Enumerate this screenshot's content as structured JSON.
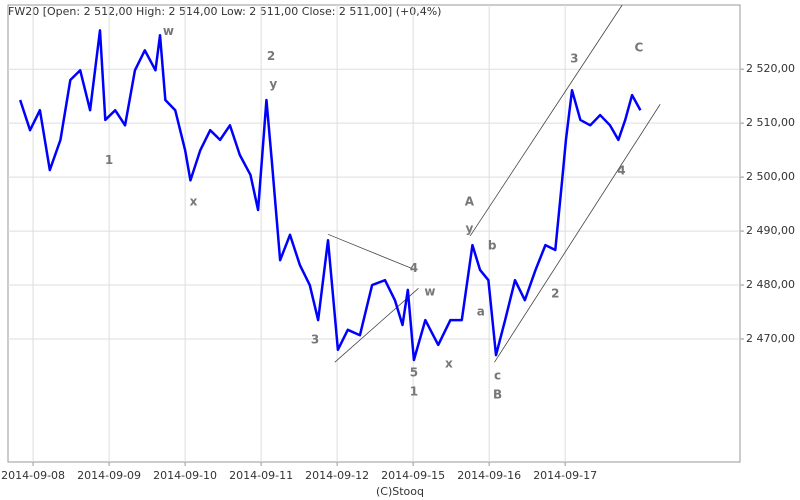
{
  "chart_data": {
    "type": "line",
    "title": "FW20 [Open: 2 512,00  High: 2 514,00  Low: 2 511,00  Close: 2 511,00] (+0,4%)",
    "footer": "(C)Stooq",
    "x": [
      -0.17,
      -0.04,
      0.09,
      0.22,
      0.36,
      0.49,
      0.62,
      0.75,
      0.88,
      0.95,
      1.08,
      1.21,
      1.34,
      1.47,
      1.61,
      1.67,
      1.74,
      1.87,
      2.0,
      2.07,
      2.2,
      2.33,
      2.46,
      2.59,
      2.72,
      2.86,
      2.96,
      3.07,
      3.14,
      3.25,
      3.38,
      3.51,
      3.64,
      3.75,
      3.88,
      4.01,
      4.14,
      4.3,
      4.46,
      4.63,
      4.76,
      4.86,
      4.93,
      5.01,
      5.16,
      5.33,
      5.49,
      5.64,
      5.78,
      5.88,
      5.99,
      6.09,
      6.21,
      6.34,
      6.47,
      6.61,
      6.74,
      6.87,
      6.96,
      7.01,
      7.09,
      7.2,
      7.33,
      7.46,
      7.59,
      7.7,
      7.79,
      7.88,
      7.99
    ],
    "series": [
      {
        "name": "FW20",
        "color": "#0000ff",
        "values": [
          2514.3,
          2508.7,
          2512.4,
          2501.3,
          2506.9,
          2518.0,
          2519.8,
          2512.4,
          2527.2,
          2510.6,
          2512.4,
          2509.6,
          2519.8,
          2523.5,
          2519.8,
          2526.3,
          2514.3,
          2512.4,
          2505.0,
          2499.4,
          2505.0,
          2508.7,
          2506.9,
          2509.6,
          2504.1,
          2500.4,
          2493.9,
          2514.3,
          2503.1,
          2484.6,
          2489.3,
          2483.7,
          2480.0,
          2473.5,
          2488.3,
          2468.0,
          2471.7,
          2470.7,
          2480.0,
          2480.9,
          2477.2,
          2472.6,
          2479.1,
          2466.1,
          2473.5,
          2468.9,
          2473.5,
          2473.5,
          2487.4,
          2482.8,
          2480.9,
          2467.0,
          2473.5,
          2480.9,
          2477.2,
          2482.8,
          2487.4,
          2486.5,
          2499.4,
          2506.9,
          2516.1,
          2510.6,
          2509.6,
          2511.5,
          2509.6,
          2506.9,
          2510.6,
          2515.2,
          2512.4
        ]
      }
    ],
    "xlim": [
      -0.33,
      9.3
    ],
    "ylim": [
      2447.2,
      2531.9
    ],
    "xticks": [
      {
        "value": 0,
        "label": "2014-09-08"
      },
      {
        "value": 1,
        "label": "2014-09-09"
      },
      {
        "value": 2,
        "label": "2014-09-10"
      },
      {
        "value": 3,
        "label": "2014-09-11"
      },
      {
        "value": 4,
        "label": "2014-09-12"
      },
      {
        "value": 5,
        "label": "2014-09-15"
      },
      {
        "value": 6,
        "label": "2014-09-16"
      },
      {
        "value": 7,
        "label": "2014-09-17"
      }
    ],
    "yticks": [
      {
        "value": 2470,
        "label": "2 470,00"
      },
      {
        "value": 2480,
        "label": "2 480,00"
      },
      {
        "value": 2490,
        "label": "2 490,00"
      },
      {
        "value": 2500,
        "label": "2 500,00"
      },
      {
        "value": 2510,
        "label": "2 510,00"
      },
      {
        "value": 2520,
        "label": "2 520,00"
      }
    ],
    "grid": true,
    "annotations": [
      {
        "text": "w",
        "x": 1.78,
        "y": 2527.0
      },
      {
        "text": "1",
        "x": 1.0,
        "y": 2503.1
      },
      {
        "text": "x",
        "x": 2.11,
        "y": 2495.4
      },
      {
        "text": "2",
        "x": 3.13,
        "y": 2522.4
      },
      {
        "text": "y",
        "x": 3.16,
        "y": 2517.2
      },
      {
        "text": "3",
        "x": 3.71,
        "y": 2469.8
      },
      {
        "text": "4",
        "x": 5.01,
        "y": 2483.1
      },
      {
        "text": "w",
        "x": 5.22,
        "y": 2478.7
      },
      {
        "text": "5",
        "x": 5.01,
        "y": 2463.7
      },
      {
        "text": "1",
        "x": 5.01,
        "y": 2460.2
      },
      {
        "text": "x",
        "x": 5.47,
        "y": 2465.4
      },
      {
        "text": "A",
        "x": 5.74,
        "y": 2495.4
      },
      {
        "text": "y",
        "x": 5.74,
        "y": 2490.4
      },
      {
        "text": "b",
        "x": 6.04,
        "y": 2487.2
      },
      {
        "text": "a",
        "x": 5.89,
        "y": 2475.0
      },
      {
        "text": "c",
        "x": 6.11,
        "y": 2463.1
      },
      {
        "text": "B",
        "x": 6.11,
        "y": 2459.6
      },
      {
        "text": "2",
        "x": 6.87,
        "y": 2478.3
      },
      {
        "text": "3",
        "x": 7.12,
        "y": 2521.9
      },
      {
        "text": "4",
        "x": 7.74,
        "y": 2501.1
      },
      {
        "text": "C",
        "x": 7.97,
        "y": 2523.9
      }
    ],
    "trend_lines": [
      {
        "x": [
          3.88,
          5.03
        ],
        "y": [
          2489.4,
          2482.8
        ]
      },
      {
        "x": [
          3.97,
          5.07
        ],
        "y": [
          2465.7,
          2479.4
        ]
      },
      {
        "x": [
          5.75,
          7.75
        ],
        "y": [
          2489.1,
          2531.9
        ]
      },
      {
        "x": [
          6.07,
          8.25
        ],
        "y": [
          2465.7,
          2513.5
        ]
      }
    ]
  }
}
